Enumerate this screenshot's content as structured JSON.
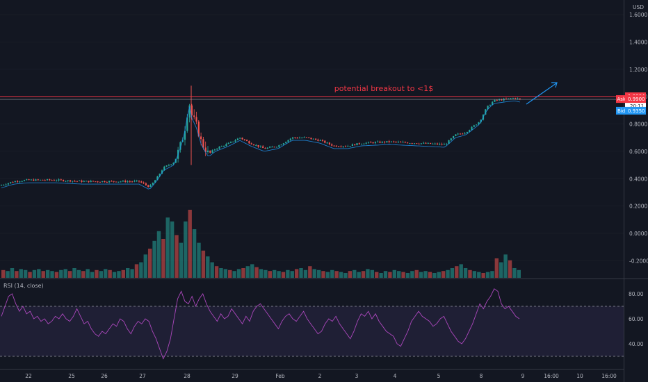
{
  "chart_data": [
    {
      "type": "candlestick",
      "title": "",
      "currency": "USD",
      "y_ticks": [
        "1.6000",
        "1.4000",
        "1.2000",
        "1.0000",
        "0.8000",
        "0.6000",
        "0.4000",
        "0.2000",
        "0.0000",
        "-0.2000"
      ],
      "ylim": [
        -0.26,
        1.74
      ],
      "x_ticks": [
        "22",
        "25",
        "26",
        "27",
        "28",
        "29",
        "Feb",
        "2",
        "3",
        "4",
        "5",
        "8",
        "9",
        "16:00",
        "10",
        "16:00"
      ],
      "annotation": "potential breakout to <1$",
      "resistance_level": 1.0004,
      "resistance_label": "1.0004",
      "ask_label": "Ask",
      "ask_value": "0.9900",
      "bid_label": "Bid",
      "bid_value": "0.9350",
      "countdown": "20:11",
      "ask_line": 0.99,
      "price_path": [
        [
          0,
          0.35
        ],
        [
          20,
          0.38
        ],
        [
          40,
          0.39
        ],
        [
          80,
          0.39
        ],
        [
          120,
          0.38
        ],
        [
          160,
          0.38
        ],
        [
          200,
          0.38
        ],
        [
          215,
          0.34
        ],
        [
          225,
          0.4
        ],
        [
          235,
          0.48
        ],
        [
          250,
          0.52
        ],
        [
          258,
          0.62
        ],
        [
          265,
          0.74
        ],
        [
          272,
          0.96
        ],
        [
          276,
          0.86
        ],
        [
          282,
          0.8
        ],
        [
          290,
          0.66
        ],
        [
          300,
          0.58
        ],
        [
          310,
          0.62
        ],
        [
          330,
          0.66
        ],
        [
          345,
          0.7
        ],
        [
          360,
          0.66
        ],
        [
          380,
          0.62
        ],
        [
          400,
          0.64
        ],
        [
          420,
          0.7
        ],
        [
          440,
          0.7
        ],
        [
          460,
          0.68
        ],
        [
          480,
          0.64
        ],
        [
          500,
          0.64
        ],
        [
          520,
          0.66
        ],
        [
          560,
          0.67
        ],
        [
          600,
          0.66
        ],
        [
          640,
          0.65
        ],
        [
          655,
          0.72
        ],
        [
          670,
          0.74
        ],
        [
          690,
          0.82
        ],
        [
          700,
          0.92
        ],
        [
          710,
          0.97
        ],
        [
          725,
          0.98
        ],
        [
          740,
          0.99
        ],
        [
          748,
          0.98
        ]
      ],
      "volume": [
        8,
        7,
        10,
        7,
        9,
        8,
        6,
        8,
        9,
        7,
        8,
        7,
        6,
        8,
        9,
        7,
        10,
        8,
        7,
        9,
        6,
        8,
        7,
        9,
        8,
        6,
        7,
        8,
        10,
        9,
        14,
        16,
        24,
        30,
        38,
        48,
        40,
        62,
        58,
        44,
        36,
        58,
        70,
        50,
        36,
        28,
        22,
        16,
        12,
        10,
        9,
        8,
        7,
        9,
        10,
        12,
        14,
        11,
        9,
        8,
        7,
        8,
        7,
        6,
        8,
        7,
        9,
        10,
        8,
        12,
        9,
        8,
        7,
        6,
        8,
        7,
        6,
        5,
        7,
        8,
        6,
        7,
        9,
        8,
        6,
        5,
        7,
        6,
        8,
        7,
        6,
        5,
        7,
        8,
        6,
        7,
        6,
        5,
        6,
        7,
        8,
        10,
        12,
        14,
        10,
        8,
        7,
        6,
        5,
        6,
        7,
        20,
        16,
        24,
        18,
        10,
        8
      ],
      "rsi": {
        "title": "RSI (14, close)",
        "upper": 70,
        "lower": 30,
        "ticks": [
          "80.00",
          "60.00",
          "40.00"
        ],
        "ylim": [
          22,
          90
        ],
        "values": [
          62,
          70,
          78,
          80,
          72,
          66,
          70,
          64,
          66,
          60,
          62,
          58,
          60,
          56,
          58,
          62,
          60,
          64,
          60,
          58,
          62,
          68,
          62,
          56,
          58,
          52,
          48,
          46,
          50,
          48,
          52,
          56,
          54,
          60,
          58,
          52,
          48,
          54,
          58,
          56,
          60,
          58,
          50,
          44,
          36,
          28,
          34,
          44,
          60,
          76,
          82,
          74,
          72,
          78,
          70,
          76,
          80,
          72,
          66,
          62,
          58,
          64,
          60,
          62,
          68,
          64,
          60,
          56,
          62,
          58,
          66,
          70,
          72,
          68,
          64,
          60,
          56,
          52,
          58,
          62,
          64,
          60,
          58,
          62,
          66,
          60,
          56,
          52,
          48,
          50,
          56,
          60,
          58,
          62,
          56,
          52,
          48,
          44,
          50,
          58,
          64,
          62,
          66,
          60,
          64,
          58,
          54,
          50,
          48,
          46,
          40,
          38,
          44,
          50,
          58,
          62,
          66,
          62,
          60,
          58,
          54,
          56,
          60,
          62,
          56,
          50,
          46,
          42,
          40,
          44,
          50,
          56,
          64,
          72,
          68,
          74,
          78,
          84,
          82,
          72,
          68,
          70,
          66,
          62,
          60
        ]
      }
    }
  ]
}
